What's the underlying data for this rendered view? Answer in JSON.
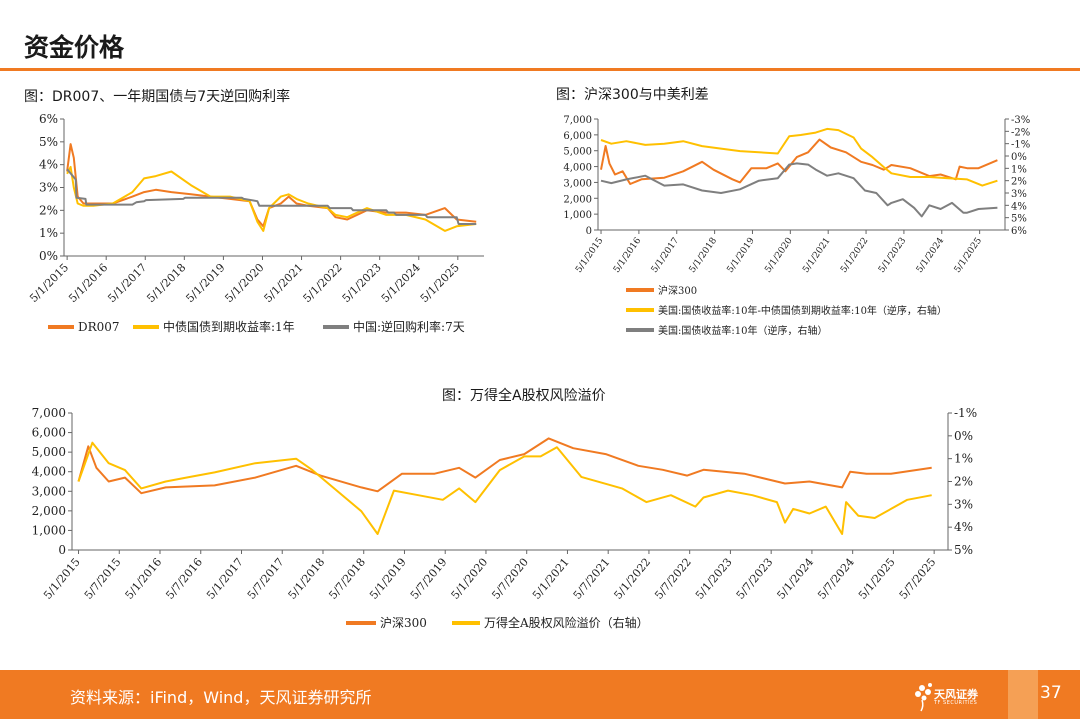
{
  "page": {
    "title": "资金价格",
    "source": "资料来源：iFind，Wind，天风证券研究所",
    "page_number": "37",
    "logo_text": "天风证券",
    "logo_sub": "TF SECURITIES"
  },
  "colors": {
    "accent": "#f07a22",
    "orange": "#f07a22",
    "yellow": "#ffc000",
    "gray": "#7f7f7f"
  },
  "chart_data": [
    {
      "id": "chart1",
      "type": "line",
      "title": "图：DR007、一年期国债与7天逆回购利率",
      "x_ticks": [
        "5/1/2015",
        "5/1/2016",
        "5/1/2017",
        "5/1/2018",
        "5/1/2019",
        "5/1/2020",
        "5/1/2021",
        "5/1/2022",
        "5/1/2023",
        "5/1/2024",
        "5/1/2025"
      ],
      "ylim": [
        0,
        6
      ],
      "y_ticks": [
        "0%",
        "1%",
        "2%",
        "3%",
        "4%",
        "5%",
        "6%"
      ],
      "series": [
        {
          "name": "DR007",
          "color": "orange",
          "x": [
            2015.33,
            2015.42,
            2015.5,
            2015.6,
            2015.75,
            2016.0,
            2016.5,
            2017.0,
            2017.3,
            2017.6,
            2018.0,
            2018.5,
            2019.0,
            2019.5,
            2020.0,
            2020.2,
            2020.35,
            2020.5,
            2020.8,
            2021.0,
            2021.2,
            2021.5,
            2022.0,
            2022.2,
            2022.5,
            2023.0,
            2023.5,
            2024.0,
            2024.5,
            2025.0,
            2025.3,
            2025.8
          ],
          "y": [
            3.7,
            4.9,
            4.3,
            2.6,
            2.3,
            2.3,
            2.3,
            2.6,
            2.8,
            2.9,
            2.8,
            2.7,
            2.6,
            2.5,
            2.4,
            1.6,
            1.3,
            2.1,
            2.3,
            2.6,
            2.3,
            2.2,
            2.1,
            1.7,
            1.6,
            2.0,
            1.9,
            1.9,
            1.8,
            2.1,
            1.6,
            1.5
          ]
        },
        {
          "name": "中债国债到期收益率:1年",
          "color": "yellow",
          "x": [
            2015.33,
            2015.42,
            2015.5,
            2015.6,
            2015.75,
            2016.0,
            2016.5,
            2017.0,
            2017.3,
            2017.6,
            2018.0,
            2018.5,
            2019.0,
            2019.5,
            2020.0,
            2020.2,
            2020.35,
            2020.5,
            2020.8,
            2021.0,
            2021.2,
            2021.5,
            2022.0,
            2022.2,
            2022.5,
            2023.0,
            2023.5,
            2024.0,
            2024.5,
            2025.0,
            2025.3,
            2025.8
          ],
          "y": [
            3.6,
            3.9,
            3.0,
            2.3,
            2.2,
            2.2,
            2.3,
            2.8,
            3.4,
            3.5,
            3.7,
            3.1,
            2.6,
            2.6,
            2.4,
            1.5,
            1.1,
            2.1,
            2.6,
            2.7,
            2.5,
            2.3,
            2.1,
            1.8,
            1.7,
            2.1,
            1.8,
            1.8,
            1.6,
            1.1,
            1.3,
            1.4
          ]
        },
        {
          "name": "中国:逆回购利率:7天",
          "color": "gray",
          "x": [
            2015.33,
            2015.55,
            2015.57,
            2015.8,
            2015.82,
            2017.0,
            2017.1,
            2017.3,
            2017.35,
            2018.3,
            2018.35,
            2019.8,
            2019.85,
            2020.2,
            2020.25,
            2022.0,
            2022.05,
            2022.6,
            2022.65,
            2023.5,
            2023.55,
            2023.7,
            2023.75,
            2024.5,
            2024.55,
            2025.3,
            2025.35,
            2025.8
          ],
          "y": [
            3.8,
            3.35,
            2.55,
            2.5,
            2.25,
            2.25,
            2.35,
            2.4,
            2.45,
            2.5,
            2.55,
            2.55,
            2.5,
            2.4,
            2.2,
            2.2,
            2.1,
            2.1,
            2.0,
            2.0,
            1.9,
            1.9,
            1.8,
            1.8,
            1.7,
            1.7,
            1.4,
            1.4
          ]
        }
      ]
    },
    {
      "id": "chart2",
      "type": "line",
      "title": "图：沪深300与中美利差",
      "x_ticks": [
        "5/1/2015",
        "5/1/2016",
        "5/1/2017",
        "5/1/2018",
        "5/1/2019",
        "5/1/2020",
        "5/1/2021",
        "5/1/2022",
        "5/1/2023",
        "5/1/2024",
        "5/1/2025"
      ],
      "ylim": [
        0,
        7000
      ],
      "y_ticks": [
        "0",
        "1,000",
        "2,000",
        "3,000",
        "4,000",
        "5,000",
        "6,000",
        "7,000"
      ],
      "y2lim": [
        -3,
        6
      ],
      "y2_ticks": [
        "-3%",
        "-2%",
        "-1%",
        "0%",
        "1%",
        "2%",
        "3%",
        "4%",
        "5%",
        "6%"
      ],
      "series": [
        {
          "name": "沪深300",
          "axis": "left",
          "color": "orange",
          "x": [
            2015.33,
            2015.45,
            2015.55,
            2015.7,
            2015.9,
            2016.1,
            2016.4,
            2017.0,
            2017.5,
            2018.0,
            2018.3,
            2018.8,
            2019.0,
            2019.3,
            2019.7,
            2020.0,
            2020.2,
            2020.5,
            2020.8,
            2021.1,
            2021.4,
            2021.8,
            2022.2,
            2022.5,
            2022.8,
            2023.0,
            2023.5,
            2024.0,
            2024.3,
            2024.7,
            2024.8,
            2025.0,
            2025.3,
            2025.8
          ],
          "y": [
            3800,
            5300,
            4200,
            3500,
            3700,
            2900,
            3200,
            3300,
            3700,
            4300,
            3800,
            3200,
            3000,
            3900,
            3900,
            4200,
            3700,
            4600,
            4900,
            5700,
            5200,
            4900,
            4300,
            4100,
            3800,
            4100,
            3900,
            3400,
            3500,
            3200,
            4000,
            3900,
            3900,
            4400
          ]
        },
        {
          "name": "美国:国债收益率:10年-中债国债到期收益率:10年（逆序，右轴）",
          "axis": "right",
          "color": "yellow",
          "x": [
            2015.33,
            2015.6,
            2016.0,
            2016.5,
            2017.0,
            2017.5,
            2018.0,
            2018.5,
            2019.0,
            2019.5,
            2020.0,
            2020.3,
            2020.6,
            2021.0,
            2021.3,
            2021.6,
            2022.0,
            2022.2,
            2022.5,
            2022.8,
            2023.0,
            2023.5,
            2024.0,
            2024.5,
            2025.0,
            2025.4,
            2025.8
          ],
          "y": [
            -1.3,
            -1.0,
            -1.2,
            -0.9,
            -1.0,
            -1.2,
            -0.8,
            -0.6,
            -0.4,
            -0.3,
            -0.2,
            -1.6,
            -1.7,
            -1.9,
            -2.2,
            -2.1,
            -1.5,
            -0.6,
            0.1,
            0.9,
            1.4,
            1.7,
            1.7,
            1.8,
            1.9,
            2.4,
            2.0
          ]
        },
        {
          "name": "美国:国债收益率:10年（逆序，右轴）",
          "axis": "right",
          "color": "gray",
          "x": [
            2015.33,
            2015.6,
            2016.0,
            2016.5,
            2017.0,
            2017.5,
            2018.0,
            2018.5,
            2019.0,
            2019.5,
            2020.0,
            2020.3,
            2020.5,
            2020.8,
            2021.0,
            2021.3,
            2021.6,
            2022.0,
            2022.3,
            2022.6,
            2022.9,
            2023.0,
            2023.3,
            2023.6,
            2023.8,
            2024.0,
            2024.3,
            2024.6,
            2024.9,
            2025.0,
            2025.3,
            2025.8
          ],
          "y": [
            2.0,
            2.2,
            1.9,
            1.6,
            2.4,
            2.3,
            2.8,
            3.0,
            2.7,
            2.0,
            1.8,
            0.7,
            0.6,
            0.7,
            1.1,
            1.6,
            1.4,
            1.8,
            2.8,
            3.0,
            4.0,
            3.8,
            3.5,
            4.2,
            4.9,
            4.0,
            4.3,
            3.8,
            4.6,
            4.6,
            4.3,
            4.2
          ]
        }
      ]
    },
    {
      "id": "chart3",
      "type": "line",
      "title": "图：万得全A股权风险溢价",
      "x_ticks": [
        "5/1/2015",
        "5/7/2015",
        "5/1/2016",
        "5/7/2016",
        "5/1/2017",
        "5/7/2017",
        "5/1/2018",
        "5/7/2018",
        "5/1/2019",
        "5/7/2019",
        "5/1/2020",
        "5/7/2020",
        "5/1/2021",
        "5/7/2021",
        "5/1/2022",
        "5/7/2022",
        "5/1/2023",
        "5/7/2023",
        "5/1/2024",
        "5/7/2024",
        "5/1/2025",
        "5/7/2025"
      ],
      "ylim": [
        0,
        7000
      ],
      "y_ticks": [
        "0",
        "1,000",
        "2,000",
        "3,000",
        "4,000",
        "5,000",
        "6,000",
        "7,000"
      ],
      "y2lim": [
        -1,
        5
      ],
      "y2_ticks": [
        "-1%",
        "0%",
        "1%",
        "2%",
        "3%",
        "4%",
        "5%"
      ],
      "series": [
        {
          "name": "沪深300",
          "axis": "left",
          "color": "orange",
          "x": [
            2015.33,
            2015.45,
            2015.55,
            2015.7,
            2015.9,
            2016.1,
            2016.4,
            2017.0,
            2017.5,
            2018.0,
            2018.3,
            2018.8,
            2019.0,
            2019.3,
            2019.7,
            2020.0,
            2020.2,
            2020.5,
            2020.8,
            2021.1,
            2021.4,
            2021.8,
            2022.2,
            2022.5,
            2022.8,
            2023.0,
            2023.5,
            2024.0,
            2024.3,
            2024.7,
            2024.8,
            2025.0,
            2025.3,
            2025.8
          ],
          "y": [
            3500,
            5300,
            4200,
            3500,
            3700,
            2900,
            3200,
            3300,
            3700,
            4300,
            3800,
            3200,
            3000,
            3900,
            3900,
            4200,
            3700,
            4600,
            4900,
            5700,
            5200,
            4900,
            4300,
            4100,
            3800,
            4100,
            3900,
            3400,
            3500,
            3200,
            4000,
            3900,
            3900,
            4200
          ]
        },
        {
          "name": "万得全A股权风险溢价（右轴）",
          "axis": "right",
          "color": "yellow",
          "x": [
            2015.33,
            2015.5,
            2015.7,
            2015.9,
            2016.1,
            2016.4,
            2016.7,
            2017.0,
            2017.5,
            2018.0,
            2018.2,
            2018.5,
            2018.8,
            2019.0,
            2019.2,
            2019.5,
            2019.8,
            2020.0,
            2020.2,
            2020.5,
            2020.8,
            2021.0,
            2021.2,
            2021.5,
            2021.8,
            2022.0,
            2022.3,
            2022.6,
            2022.9,
            2023.0,
            2023.3,
            2023.6,
            2023.9,
            2024.0,
            2024.1,
            2024.3,
            2024.5,
            2024.7,
            2024.75,
            2024.9,
            2025.1,
            2025.3,
            2025.5,
            2025.8
          ],
          "y": [
            2.0,
            0.3,
            1.2,
            1.5,
            2.3,
            2.0,
            1.8,
            1.6,
            1.2,
            1.0,
            1.5,
            2.4,
            3.3,
            4.3,
            2.4,
            2.6,
            2.8,
            2.3,
            2.9,
            1.5,
            0.9,
            0.9,
            0.5,
            1.8,
            2.1,
            2.3,
            2.9,
            2.6,
            3.1,
            2.7,
            2.4,
            2.6,
            2.9,
            3.8,
            3.2,
            3.4,
            3.1,
            4.3,
            2.9,
            3.5,
            3.6,
            3.2,
            2.8,
            2.6
          ]
        }
      ]
    }
  ]
}
